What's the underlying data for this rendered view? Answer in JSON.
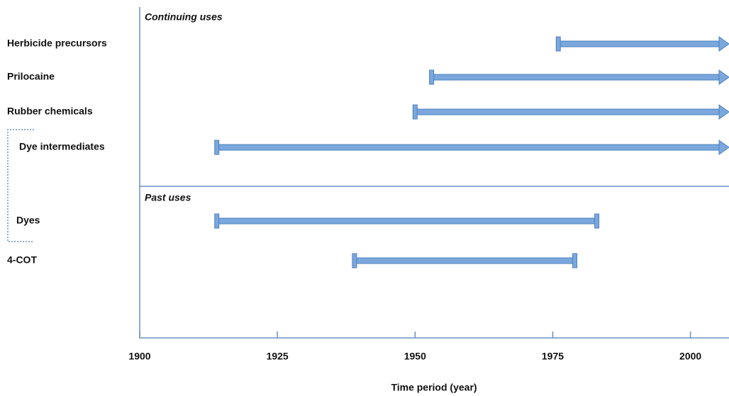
{
  "chart_data": {
    "type": "range",
    "x_label": "Time period (year)",
    "xlim": [
      1900,
      2007
    ],
    "xticks": [
      1900,
      1925,
      1950,
      1975,
      2000
    ],
    "color": "#7aa7dc",
    "groups": [
      {
        "label": "Continuing uses",
        "categories": [
          "Herbicide precursors",
          "Prilocaine",
          "Rubber chemicals",
          "Dye intermediates"
        ],
        "start": [
          1976,
          1953,
          1950,
          1914
        ],
        "end": [
          null,
          null,
          null,
          null
        ]
      },
      {
        "label": "Past uses",
        "categories": [
          "Dyes",
          "4-COT"
        ],
        "start": [
          1914,
          1939
        ],
        "end": [
          1983,
          1979
        ]
      }
    ]
  }
}
